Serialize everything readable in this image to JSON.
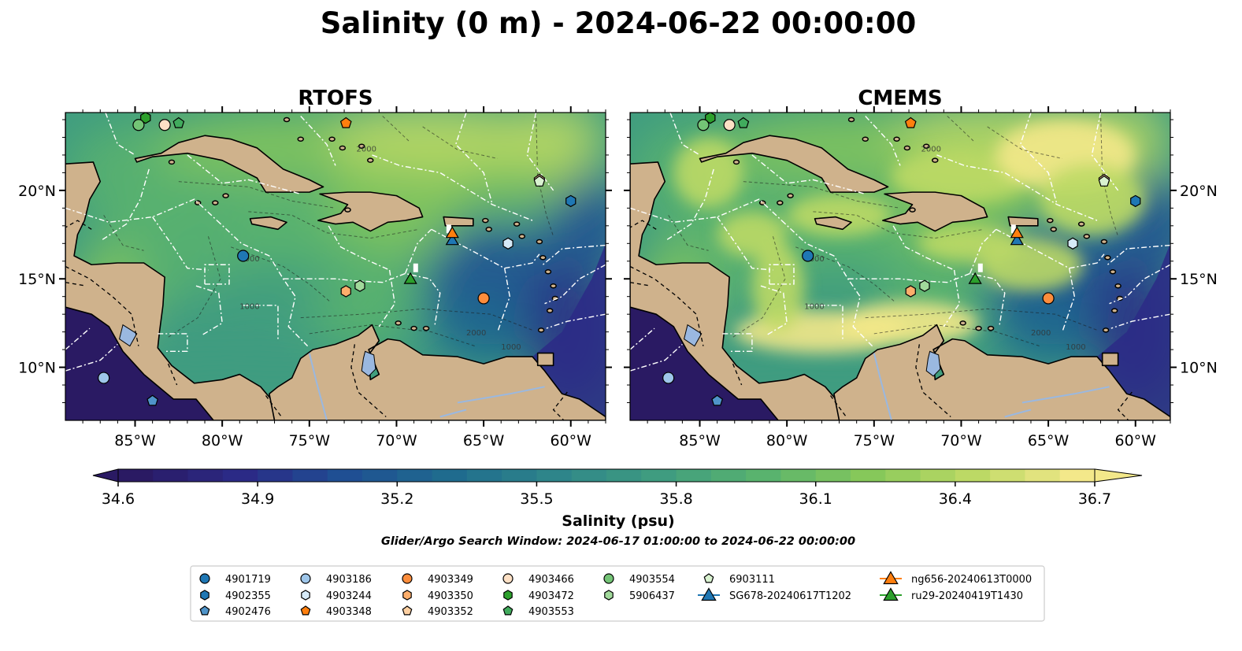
{
  "title": "Salinity (0 m) - 2024-06-22 00:00:00",
  "panels": [
    {
      "title": "RTOFS",
      "variant": "rtofs"
    },
    {
      "title": "CMEMS",
      "variant": "cmems"
    }
  ],
  "map_extent": {
    "lon_min": -89,
    "lon_max": -58,
    "lat_min": 7,
    "lat_max": 24.4
  },
  "axes": {
    "lon_ticks": [
      {
        "value": -85,
        "label": "85°W"
      },
      {
        "value": -80,
        "label": "80°W"
      },
      {
        "value": -75,
        "label": "75°W"
      },
      {
        "value": -70,
        "label": "70°W"
      },
      {
        "value": -65,
        "label": "65°W"
      },
      {
        "value": -60,
        "label": "60°W"
      }
    ],
    "lat_ticks": [
      {
        "value": 20,
        "label": "20°N"
      },
      {
        "value": 15,
        "label": "15°N"
      },
      {
        "value": 10,
        "label": "10°N"
      }
    ]
  },
  "colorbar": {
    "label": "Salinity (psu)",
    "min": 34.6,
    "max": 36.7,
    "ticks": [
      "34.6",
      "34.9",
      "35.2",
      "35.5",
      "35.8",
      "36.1",
      "36.4",
      "36.7"
    ],
    "colormap": [
      "#2a1a63",
      "#2b2a86",
      "#1f4f93",
      "#1f6b8e",
      "#2e858a",
      "#3f9c80",
      "#59b36e",
      "#86c85a",
      "#bcd965",
      "#f3e88a"
    ]
  },
  "search_window": "Glider/Argo Search Window: 2024-06-17 01:00:00 to 2024-06-22 00:00:00",
  "land_color": "#cfb28c",
  "lake_color": "#9ab8e0",
  "contour_labels": [
    "1000",
    "2000"
  ],
  "platforms": [
    {
      "id": "4901719",
      "marker": "circle",
      "color": "#1f77b4",
      "lon": -78.8,
      "lat": 16.3
    },
    {
      "id": "4902355",
      "marker": "hexagon",
      "color": "#1f77b4",
      "lon": -60.0,
      "lat": 19.4
    },
    {
      "id": "4902476",
      "marker": "pentagon",
      "color": "#4f94c9",
      "lon": -84.0,
      "lat": 8.1
    },
    {
      "id": "4903186",
      "marker": "circle",
      "color": "#9ec6ea",
      "lon": -86.8,
      "lat": 9.4
    },
    {
      "id": "4903244",
      "marker": "hexagon",
      "color": "#d6eaf8",
      "lon": -63.6,
      "lat": 17.0
    },
    {
      "id": "4903348",
      "marker": "pentagon",
      "color": "#ff7f0e",
      "lon": -72.9,
      "lat": 23.8
    },
    {
      "id": "4903349",
      "marker": "circle",
      "color": "#fd8d3c",
      "lon": -65.0,
      "lat": 13.9
    },
    {
      "id": "4903350",
      "marker": "hexagon",
      "color": "#fdae6b",
      "lon": -72.9,
      "lat": 14.3
    },
    {
      "id": "4903352",
      "marker": "pentagon",
      "color": "#fdd0a2",
      "lon": -61.8,
      "lat": 20.6
    },
    {
      "id": "4903466",
      "marker": "circle",
      "color": "#fde0c5",
      "lon": -83.3,
      "lat": 23.7
    },
    {
      "id": "4903472",
      "marker": "hexagon",
      "color": "#2ca02c",
      "lon": -84.4,
      "lat": 24.1
    },
    {
      "id": "4903553",
      "marker": "pentagon",
      "color": "#41ab5d",
      "lon": -82.5,
      "lat": 23.8
    },
    {
      "id": "4903554",
      "marker": "circle",
      "color": "#74c476",
      "lon": -84.8,
      "lat": 23.7
    },
    {
      "id": "5906437",
      "marker": "hexagon",
      "color": "#a1d99b",
      "lon": -72.1,
      "lat": 14.6
    },
    {
      "id": "6903111",
      "marker": "pentagon",
      "color": "#d9f2d0",
      "lon": -61.8,
      "lat": 20.5
    },
    {
      "id": "SG678-20240617T1202",
      "marker": "triangle",
      "color": "#1f77b4",
      "lon": -66.8,
      "lat": 17.2,
      "line": true
    },
    {
      "id": "ng656-20240613T0000",
      "marker": "triangle",
      "color": "#ff7f0e",
      "lon": -66.8,
      "lat": 17.6,
      "line": true
    },
    {
      "id": "ru29-20240419T1430",
      "marker": "triangle",
      "color": "#2ca02c",
      "lon": -69.2,
      "lat": 15.0,
      "line": true
    }
  ]
}
